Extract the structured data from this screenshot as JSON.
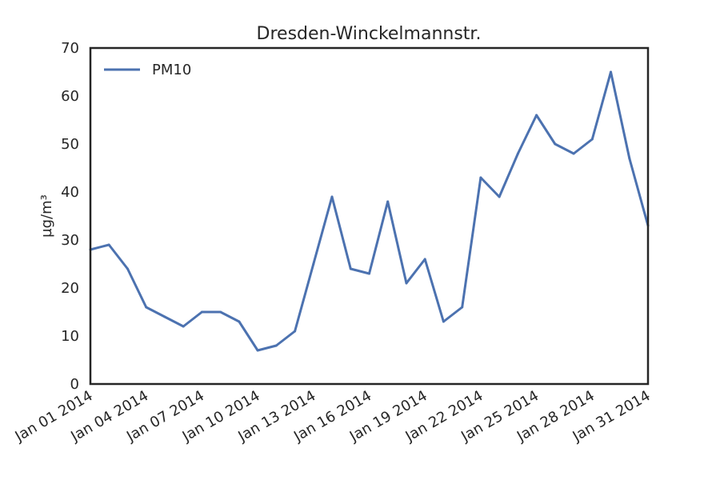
{
  "chart_data": {
    "type": "line",
    "title": "Dresden-Winckelmannstr.",
    "xlabel": "",
    "ylabel": "µg/m³",
    "ylim": [
      0,
      70
    ],
    "xlim": [
      "2014-01-01",
      "2014-01-31"
    ],
    "yticks": [
      0,
      10,
      20,
      30,
      40,
      50,
      60,
      70
    ],
    "xtick_labels": [
      "Jan 01 2014",
      "Jan 04 2014",
      "Jan 07 2014",
      "Jan 10 2014",
      "Jan 13 2014",
      "Jan 16 2014",
      "Jan 19 2014",
      "Jan 22 2014",
      "Jan 25 2014",
      "Jan 28 2014",
      "Jan 31 2014"
    ],
    "grid": false,
    "legend_position": "top-left",
    "x": [
      "2014-01-01",
      "2014-01-02",
      "2014-01-03",
      "2014-01-04",
      "2014-01-05",
      "2014-01-06",
      "2014-01-07",
      "2014-01-08",
      "2014-01-09",
      "2014-01-10",
      "2014-01-11",
      "2014-01-12",
      "2014-01-13",
      "2014-01-14",
      "2014-01-15",
      "2014-01-16",
      "2014-01-17",
      "2014-01-18",
      "2014-01-19",
      "2014-01-20",
      "2014-01-21",
      "2014-01-22",
      "2014-01-23",
      "2014-01-24",
      "2014-01-25",
      "2014-01-26",
      "2014-01-27",
      "2014-01-28",
      "2014-01-29",
      "2014-01-30",
      "2014-01-31"
    ],
    "series": [
      {
        "name": "PM10",
        "color": "#4c72b0",
        "values": [
          28,
          29,
          24,
          16,
          14,
          12,
          15,
          15,
          13,
          7,
          8,
          11,
          25,
          39,
          24,
          23,
          38,
          21,
          26,
          13,
          16,
          43,
          39,
          48,
          56,
          50,
          48,
          51,
          65,
          47,
          33
        ]
      }
    ]
  }
}
